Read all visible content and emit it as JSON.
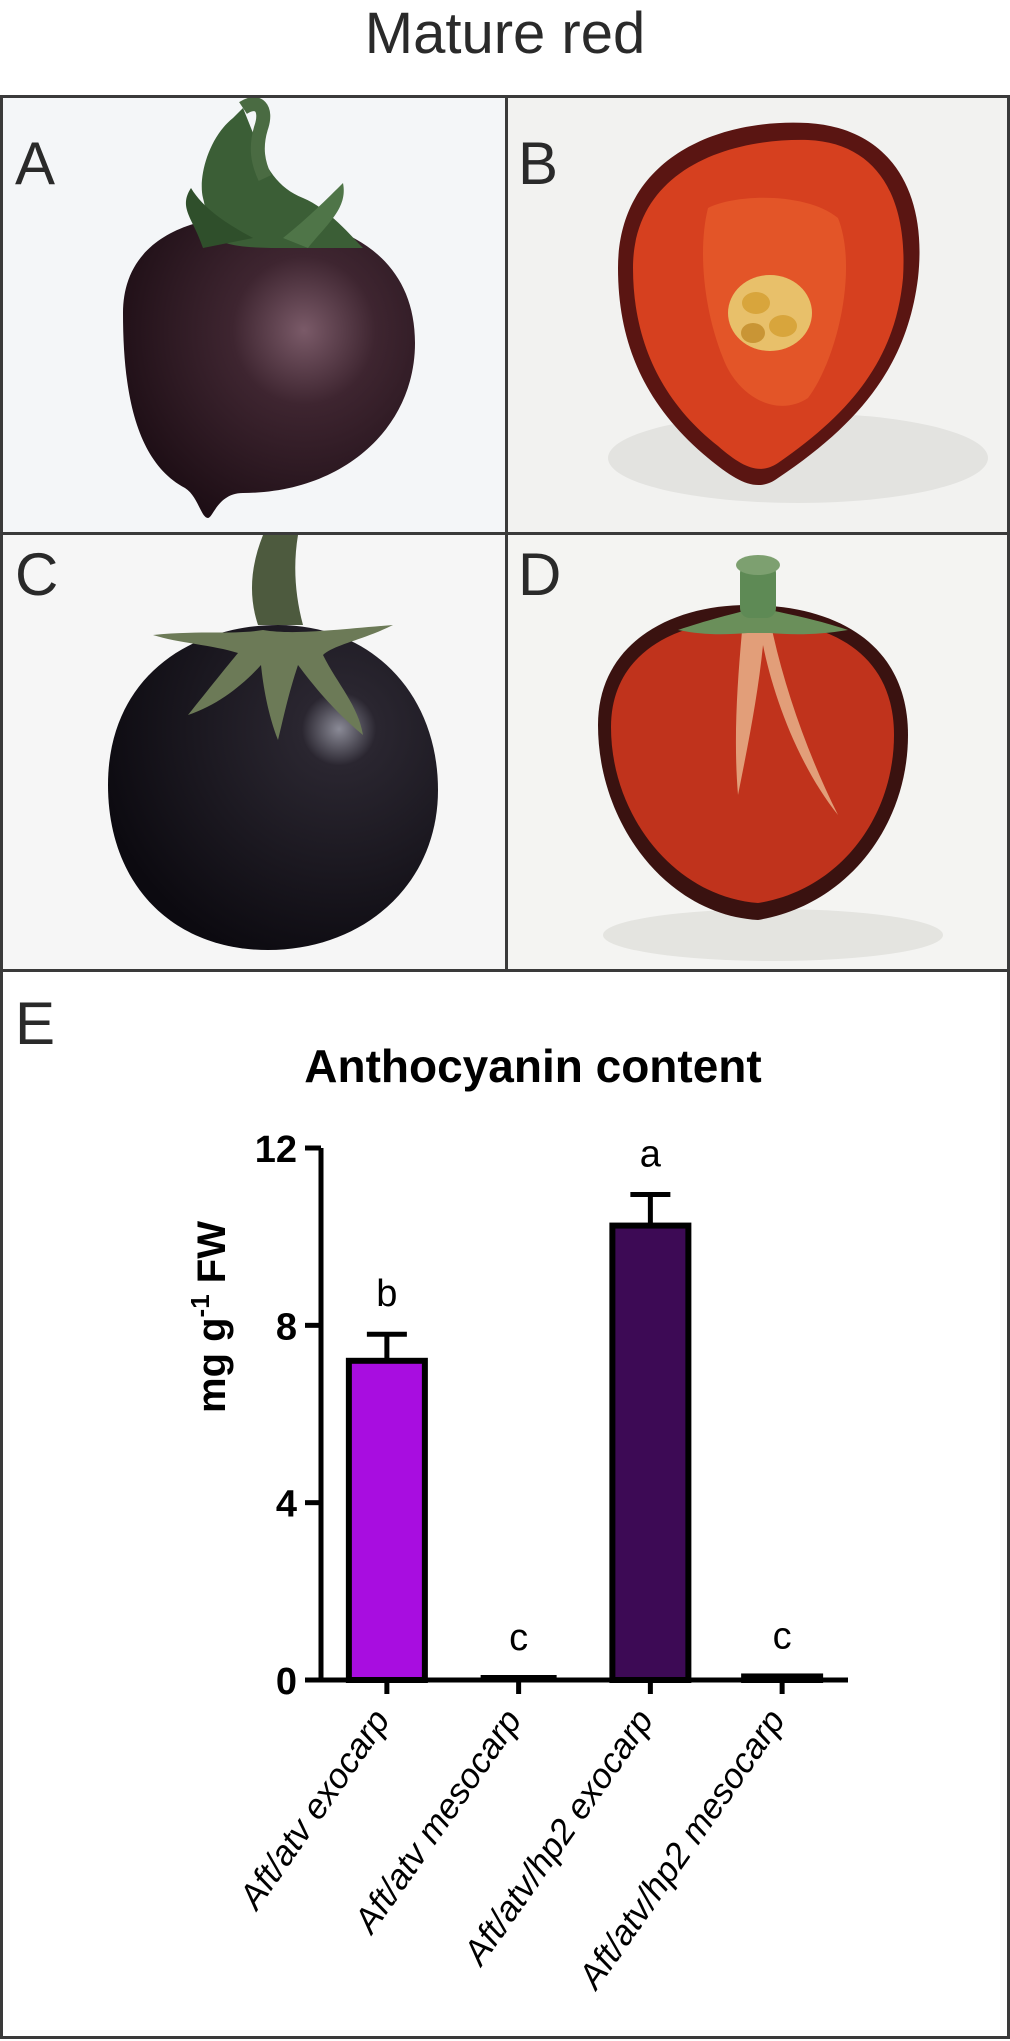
{
  "figure": {
    "title": "Mature red",
    "panels": [
      {
        "letter": "A",
        "icon": "whole-purple-tomato-image"
      },
      {
        "letter": "B",
        "icon": "cut-tomato-half-image"
      },
      {
        "letter": "C",
        "icon": "whole-black-tomato-image"
      },
      {
        "letter": "D",
        "icon": "cut-tomato-half-with-stem-image"
      }
    ],
    "chart_panel_letter": "E"
  },
  "colors": {
    "bar_1": "#a80de0",
    "bar_3": "#3d0a55",
    "axis": "#000000"
  },
  "chart_data": {
    "type": "bar",
    "title": "Anthocyanin content",
    "ylabel_main": "mg g",
    "ylabel_sup": "-1",
    "ylabel_tail": " FW",
    "ylim": [
      0,
      12
    ],
    "yticks": [
      "0",
      "4",
      "8",
      "12"
    ],
    "yticks_values": [
      0,
      4,
      8,
      12
    ],
    "categories": [
      "Aft/atv exocarp",
      "Aft/atv mesocarp",
      "Aft/atv/hp2 exocarp",
      "Aft/atv/hp2 mesocarp"
    ],
    "values": [
      7.2,
      0.05,
      10.25,
      0.08
    ],
    "errors": [
      0.6,
      0.0,
      0.7,
      0.0
    ],
    "letters": [
      "b",
      "c",
      "a",
      "c"
    ]
  }
}
